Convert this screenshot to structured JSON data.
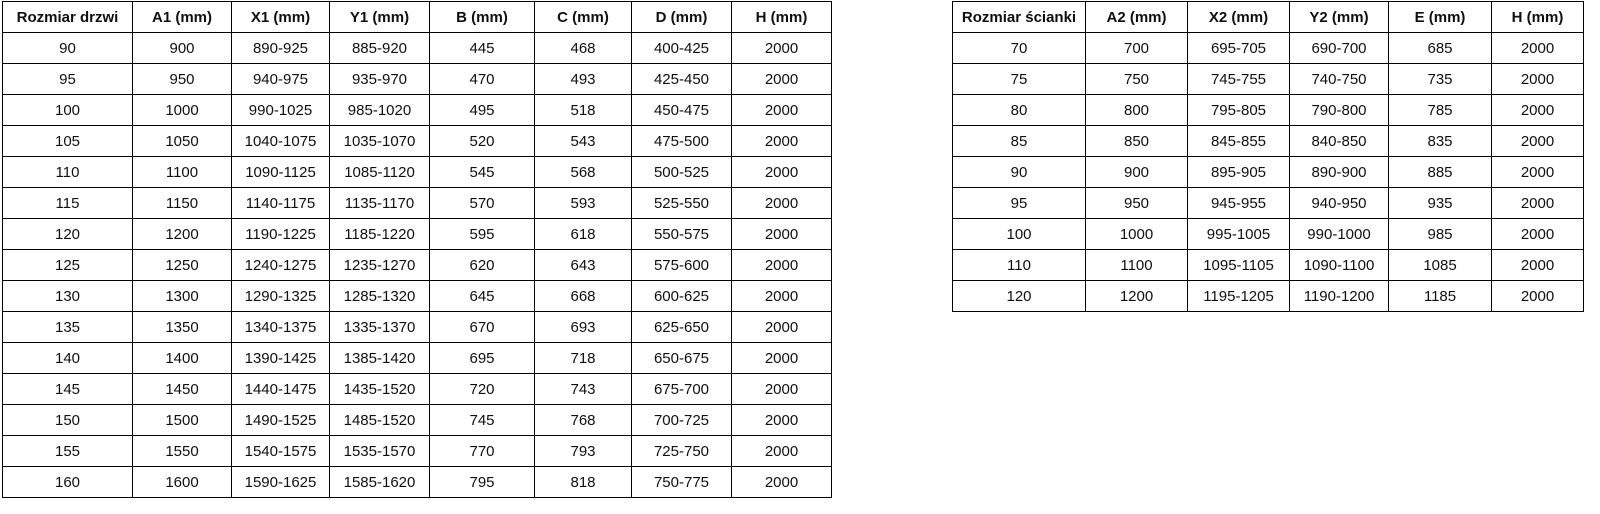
{
  "tables": [
    {
      "name": "door-size-table",
      "headers": [
        "Rozmiar drzwi",
        "A1 (mm)",
        "X1 (mm)",
        "Y1 (mm)",
        "B (mm)",
        "C (mm)",
        "D (mm)",
        "H (mm)"
      ],
      "rows": [
        [
          "90",
          "900",
          "890-925",
          "885-920",
          "445",
          "468",
          "400-425",
          "2000"
        ],
        [
          "95",
          "950",
          "940-975",
          "935-970",
          "470",
          "493",
          "425-450",
          "2000"
        ],
        [
          "100",
          "1000",
          "990-1025",
          "985-1020",
          "495",
          "518",
          "450-475",
          "2000"
        ],
        [
          "105",
          "1050",
          "1040-1075",
          "1035-1070",
          "520",
          "543",
          "475-500",
          "2000"
        ],
        [
          "110",
          "1100",
          "1090-1125",
          "1085-1120",
          "545",
          "568",
          "500-525",
          "2000"
        ],
        [
          "115",
          "1150",
          "1140-1175",
          "1135-1170",
          "570",
          "593",
          "525-550",
          "2000"
        ],
        [
          "120",
          "1200",
          "1190-1225",
          "1185-1220",
          "595",
          "618",
          "550-575",
          "2000"
        ],
        [
          "125",
          "1250",
          "1240-1275",
          "1235-1270",
          "620",
          "643",
          "575-600",
          "2000"
        ],
        [
          "130",
          "1300",
          "1290-1325",
          "1285-1320",
          "645",
          "668",
          "600-625",
          "2000"
        ],
        [
          "135",
          "1350",
          "1340-1375",
          "1335-1370",
          "670",
          "693",
          "625-650",
          "2000"
        ],
        [
          "140",
          "1400",
          "1390-1425",
          "1385-1420",
          "695",
          "718",
          "650-675",
          "2000"
        ],
        [
          "145",
          "1450",
          "1440-1475",
          "1435-1520",
          "720",
          "743",
          "675-700",
          "2000"
        ],
        [
          "150",
          "1500",
          "1490-1525",
          "1485-1520",
          "745",
          "768",
          "700-725",
          "2000"
        ],
        [
          "155",
          "1550",
          "1540-1575",
          "1535-1570",
          "770",
          "793",
          "725-750",
          "2000"
        ],
        [
          "160",
          "1600",
          "1590-1625",
          "1585-1620",
          "795",
          "818",
          "750-775",
          "2000"
        ]
      ]
    },
    {
      "name": "wall-panel-size-table",
      "headers": [
        "Rozmiar ścianki",
        "A2 (mm)",
        "X2 (mm)",
        "Y2 (mm)",
        "E (mm)",
        "H (mm)"
      ],
      "rows": [
        [
          "70",
          "700",
          "695-705",
          "690-700",
          "685",
          "2000"
        ],
        [
          "75",
          "750",
          "745-755",
          "740-750",
          "735",
          "2000"
        ],
        [
          "80",
          "800",
          "795-805",
          "790-800",
          "785",
          "2000"
        ],
        [
          "85",
          "850",
          "845-855",
          "840-850",
          "835",
          "2000"
        ],
        [
          "90",
          "900",
          "895-905",
          "890-900",
          "885",
          "2000"
        ],
        [
          "95",
          "950",
          "945-955",
          "940-950",
          "935",
          "2000"
        ],
        [
          "100",
          "1000",
          "995-1005",
          "990-1000",
          "985",
          "2000"
        ],
        [
          "110",
          "1100",
          "1095-1105",
          "1090-1100",
          "1085",
          "2000"
        ],
        [
          "120",
          "1200",
          "1195-1205",
          "1190-1200",
          "1185",
          "2000"
        ]
      ]
    }
  ],
  "colors": {
    "border": "#000000",
    "text": "#0f0f0f",
    "background": "#ffffff"
  }
}
